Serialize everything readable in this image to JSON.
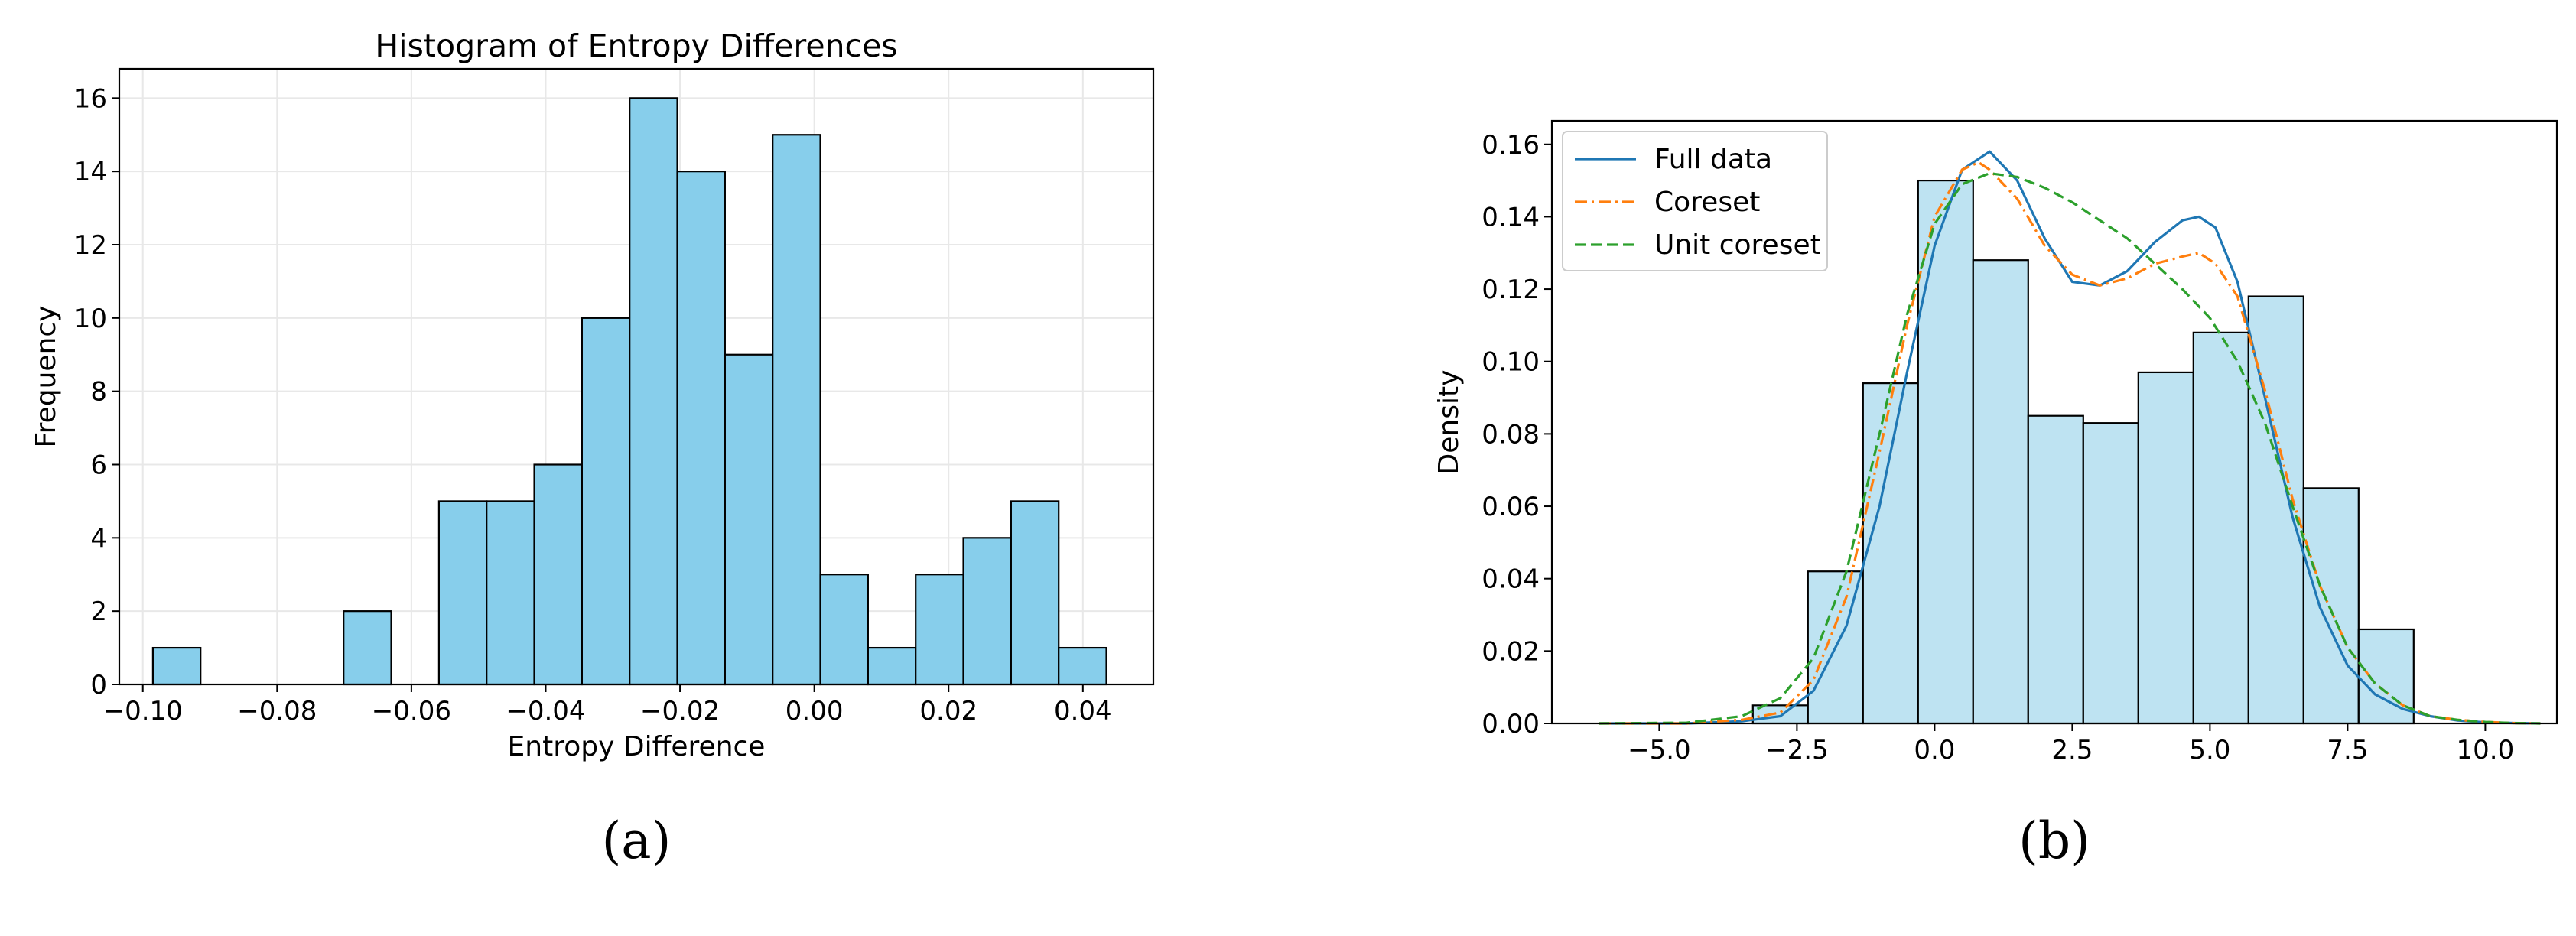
{
  "chart_data": [
    {
      "type": "bar",
      "title": "Histogram of Entropy Differences",
      "xlabel": "Entropy Difference",
      "ylabel": "Frequency",
      "caption": "(a)",
      "xlim": [
        -0.1035,
        0.0505
      ],
      "ylim": [
        0,
        16.8
      ],
      "grid": true,
      "bar_color": "#87CEEB",
      "xticks": [
        {
          "value": -0.1,
          "label": "−0.10"
        },
        {
          "value": -0.08,
          "label": "−0.08"
        },
        {
          "value": -0.06,
          "label": "−0.06"
        },
        {
          "value": -0.04,
          "label": "−0.04"
        },
        {
          "value": -0.02,
          "label": "−0.02"
        },
        {
          "value": 0.0,
          "label": "0.00"
        },
        {
          "value": 0.02,
          "label": "0.02"
        },
        {
          "value": 0.04,
          "label": "0.04"
        }
      ],
      "yticks": [
        {
          "value": 0,
          "label": "0"
        },
        {
          "value": 2,
          "label": "2"
        },
        {
          "value": 4,
          "label": "4"
        },
        {
          "value": 6,
          "label": "6"
        },
        {
          "value": 8,
          "label": "8"
        },
        {
          "value": 10,
          "label": "10"
        },
        {
          "value": 12,
          "label": "12"
        },
        {
          "value": 14,
          "label": "14"
        },
        {
          "value": 16,
          "label": "16"
        }
      ],
      "bins": [
        {
          "x0": -0.0985,
          "x1": -0.0914,
          "value": 1
        },
        {
          "x0": -0.0914,
          "x1": -0.0843,
          "value": 0
        },
        {
          "x0": -0.0843,
          "x1": -0.0772,
          "value": 0
        },
        {
          "x0": -0.0772,
          "x1": -0.0701,
          "value": 0
        },
        {
          "x0": -0.0701,
          "x1": -0.063,
          "value": 2
        },
        {
          "x0": -0.063,
          "x1": -0.0559,
          "value": 0
        },
        {
          "x0": -0.0559,
          "x1": -0.0488,
          "value": 5
        },
        {
          "x0": -0.0488,
          "x1": -0.0417,
          "value": 5
        },
        {
          "x0": -0.0417,
          "x1": -0.0346,
          "value": 6
        },
        {
          "x0": -0.0346,
          "x1": -0.0275,
          "value": 10
        },
        {
          "x0": -0.0275,
          "x1": -0.0204,
          "value": 16
        },
        {
          "x0": -0.0204,
          "x1": -0.0133,
          "value": 14
        },
        {
          "x0": -0.0133,
          "x1": -0.0062,
          "value": 9
        },
        {
          "x0": -0.0062,
          "x1": 0.0009,
          "value": 15
        },
        {
          "x0": 0.0009,
          "x1": 0.008,
          "value": 3
        },
        {
          "x0": 0.008,
          "x1": 0.0151,
          "value": 1
        },
        {
          "x0": 0.0151,
          "x1": 0.0222,
          "value": 3
        },
        {
          "x0": 0.0222,
          "x1": 0.0293,
          "value": 4
        },
        {
          "x0": 0.0293,
          "x1": 0.0364,
          "value": 5
        },
        {
          "x0": 0.0364,
          "x1": 0.0435,
          "value": 1
        }
      ]
    },
    {
      "type": "bar",
      "title": "",
      "xlabel": "",
      "ylabel": "Density",
      "caption": "(b)",
      "xlim": [
        -6.95,
        11.3
      ],
      "ylim": [
        0,
        0.1665
      ],
      "grid": false,
      "bar_color": "#BEE3F2",
      "legend_position": "top-left",
      "xticks": [
        {
          "value": -5.0,
          "label": "−5.0"
        },
        {
          "value": -2.5,
          "label": "−2.5"
        },
        {
          "value": 0.0,
          "label": "0.0"
        },
        {
          "value": 2.5,
          "label": "2.5"
        },
        {
          "value": 5.0,
          "label": "5.0"
        },
        {
          "value": 7.5,
          "label": "7.5"
        },
        {
          "value": 10.0,
          "label": "10.0"
        }
      ],
      "yticks": [
        {
          "value": 0.0,
          "label": "0.00"
        },
        {
          "value": 0.02,
          "label": "0.02"
        },
        {
          "value": 0.04,
          "label": "0.04"
        },
        {
          "value": 0.06,
          "label": "0.06"
        },
        {
          "value": 0.08,
          "label": "0.08"
        },
        {
          "value": 0.1,
          "label": "0.10"
        },
        {
          "value": 0.12,
          "label": "0.12"
        },
        {
          "value": 0.14,
          "label": "0.14"
        },
        {
          "value": 0.16,
          "label": "0.16"
        }
      ],
      "bins": [
        {
          "x0": -3.3,
          "x1": -2.3,
          "value": 0.005
        },
        {
          "x0": -2.3,
          "x1": -1.3,
          "value": 0.042
        },
        {
          "x0": -1.3,
          "x1": -0.3,
          "value": 0.094
        },
        {
          "x0": -0.3,
          "x1": 0.7,
          "value": 0.15
        },
        {
          "x0": 0.7,
          "x1": 1.7,
          "value": 0.128
        },
        {
          "x0": 1.7,
          "x1": 2.7,
          "value": 0.085
        },
        {
          "x0": 2.7,
          "x1": 3.7,
          "value": 0.083
        },
        {
          "x0": 3.7,
          "x1": 4.7,
          "value": 0.097
        },
        {
          "x0": 4.7,
          "x1": 5.7,
          "value": 0.108
        },
        {
          "x0": 5.7,
          "x1": 6.7,
          "value": 0.118
        },
        {
          "x0": 6.7,
          "x1": 7.7,
          "value": 0.065
        },
        {
          "x0": 7.7,
          "x1": 8.7,
          "value": 0.026
        }
      ],
      "series": [
        {
          "name": "Full data",
          "color": "#1f77b4",
          "dash": "solid",
          "x": [
            -6.1,
            -4.5,
            -3.5,
            -2.8,
            -2.2,
            -1.6,
            -1.0,
            -0.5,
            0.0,
            0.5,
            1.0,
            1.5,
            2.0,
            2.5,
            3.0,
            3.5,
            4.0,
            4.5,
            4.8,
            5.1,
            5.5,
            6.0,
            6.5,
            7.0,
            7.5,
            8.0,
            8.5,
            9.0,
            9.5,
            10.0,
            10.5,
            11.0
          ],
          "y": [
            0.0,
            0.0,
            0.0006,
            0.002,
            0.009,
            0.027,
            0.06,
            0.097,
            0.132,
            0.153,
            0.158,
            0.15,
            0.134,
            0.122,
            0.121,
            0.125,
            0.133,
            0.139,
            0.14,
            0.137,
            0.122,
            0.09,
            0.057,
            0.032,
            0.016,
            0.008,
            0.004,
            0.002,
            0.0008,
            0.0003,
            0.0001,
            0.0
          ]
        },
        {
          "name": "Coreset",
          "color": "#ff7f0e",
          "dash": "dashdot",
          "x": [
            -6.1,
            -4.5,
            -3.5,
            -2.8,
            -2.2,
            -1.6,
            -1.0,
            -0.5,
            0.0,
            0.5,
            0.8,
            1.0,
            1.5,
            2.0,
            2.5,
            3.0,
            3.5,
            4.0,
            4.5,
            4.8,
            5.1,
            5.5,
            6.0,
            6.5,
            7.0,
            7.5,
            8.0,
            8.5,
            9.0,
            9.5,
            10.0,
            10.5,
            11.0
          ],
          "y": [
            0.0,
            0.0,
            0.001,
            0.003,
            0.012,
            0.035,
            0.075,
            0.11,
            0.14,
            0.153,
            0.155,
            0.153,
            0.145,
            0.132,
            0.124,
            0.121,
            0.123,
            0.127,
            0.129,
            0.13,
            0.127,
            0.118,
            0.092,
            0.062,
            0.038,
            0.021,
            0.011,
            0.005,
            0.002,
            0.001,
            0.0004,
            0.0001,
            0.0
          ]
        },
        {
          "name": "Unit coreset",
          "color": "#2ca02c",
          "dash": "dashed",
          "x": [
            -6.1,
            -4.5,
            -3.5,
            -2.8,
            -2.2,
            -1.6,
            -1.0,
            -0.5,
            0.0,
            0.5,
            1.0,
            1.5,
            2.0,
            2.5,
            3.0,
            3.5,
            4.0,
            4.5,
            5.0,
            5.5,
            6.0,
            6.5,
            7.0,
            7.5,
            8.0,
            8.5,
            9.0,
            9.5,
            10.0,
            10.5,
            11.0
          ],
          "y": [
            0.0,
            0.0002,
            0.002,
            0.007,
            0.018,
            0.042,
            0.08,
            0.113,
            0.138,
            0.149,
            0.152,
            0.151,
            0.148,
            0.144,
            0.139,
            0.134,
            0.127,
            0.12,
            0.112,
            0.1,
            0.083,
            0.06,
            0.038,
            0.021,
            0.011,
            0.005,
            0.002,
            0.001,
            0.0004,
            0.0001,
            0.0
          ]
        }
      ]
    }
  ]
}
